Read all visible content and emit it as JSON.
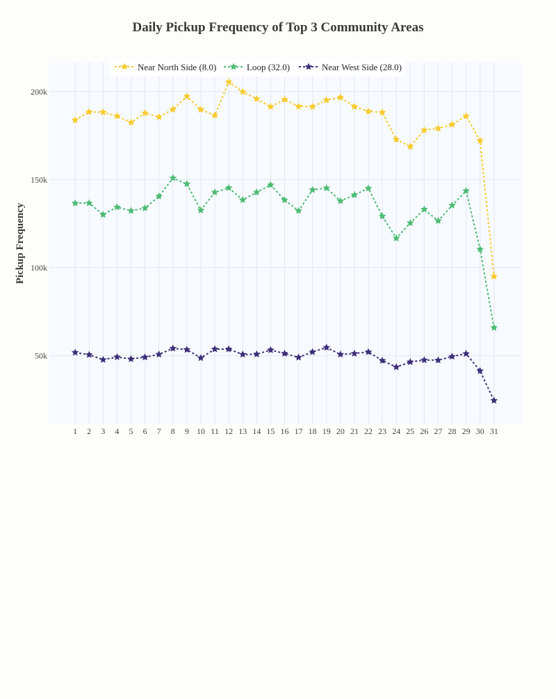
{
  "chart_data": {
    "type": "line",
    "title": "Daily Pickup Frequency of Top 3 Community Areas",
    "xlabel": "",
    "ylabel": "Pickup Frequency",
    "x": [
      1,
      2,
      3,
      4,
      5,
      6,
      7,
      8,
      9,
      10,
      11,
      12,
      13,
      14,
      15,
      16,
      17,
      18,
      19,
      20,
      21,
      22,
      23,
      24,
      25,
      26,
      27,
      28,
      29,
      30,
      31
    ],
    "xlim": [
      -0.9,
      33.0
    ],
    "ylim": [
      11000,
      216500
    ],
    "y_ticks": [
      50000,
      100000,
      150000,
      200000
    ],
    "y_tick_labels": [
      "50k",
      "100k",
      "150k",
      "200k"
    ],
    "grid": true,
    "legend_position": "top",
    "plot_background": "#f7faff",
    "series": [
      {
        "name": "Near North Side (8.0)",
        "color": "#f8cb2e",
        "values": [
          183800,
          188500,
          188300,
          186100,
          182500,
          187800,
          185600,
          189900,
          197300,
          189800,
          186500,
          205500,
          199900,
          195900,
          191400,
          195500,
          191600,
          191500,
          195200,
          196700,
          191500,
          188800,
          188200,
          172800,
          168800,
          178100,
          179100,
          181300,
          186100,
          172200,
          95000
        ]
      },
      {
        "name": "Loop (32.0)",
        "color": "#4cbb72",
        "values": [
          136600,
          136700,
          130100,
          134400,
          132300,
          133800,
          140500,
          150900,
          147500,
          132600,
          142800,
          145300,
          138500,
          142800,
          147000,
          138400,
          132300,
          144200,
          145200,
          137900,
          141300,
          145100,
          129200,
          116700,
          125400,
          133100,
          126600,
          135400,
          143600,
          110400,
          65900
        ]
      },
      {
        "name": "Near West Side (28.0)",
        "color": "#3e2f78",
        "values": [
          51800,
          50500,
          47700,
          49200,
          48100,
          49100,
          50700,
          54100,
          53400,
          48700,
          53700,
          53700,
          50700,
          50800,
          53200,
          51200,
          49000,
          52100,
          54600,
          50700,
          51200,
          52100,
          47200,
          43500,
          46400,
          47500,
          47400,
          49500,
          51100,
          41300,
          24500
        ]
      }
    ]
  }
}
